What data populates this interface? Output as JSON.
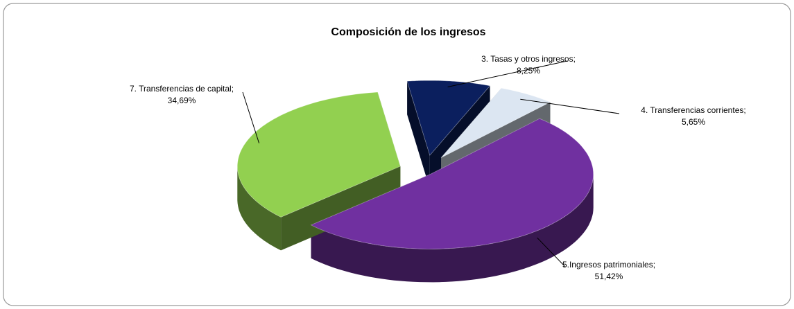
{
  "chart_data": {
    "type": "pie3d",
    "title": "Composición de los ingresos",
    "categories": [
      "3. Tasas y otros ingresos;",
      "4. Transferencias corrientes;",
      "5.Ingresos patrimoniales;",
      "7. Transferencias de capital;"
    ],
    "values": [
      8.25,
      5.65,
      51.42,
      34.69
    ],
    "value_labels": [
      "8,25%",
      "5,65%",
      "51,42%",
      "34,69%"
    ],
    "colors": [
      "#0b1f5e",
      "#dce6f2",
      "#7030a0",
      "#92d050"
    ]
  }
}
